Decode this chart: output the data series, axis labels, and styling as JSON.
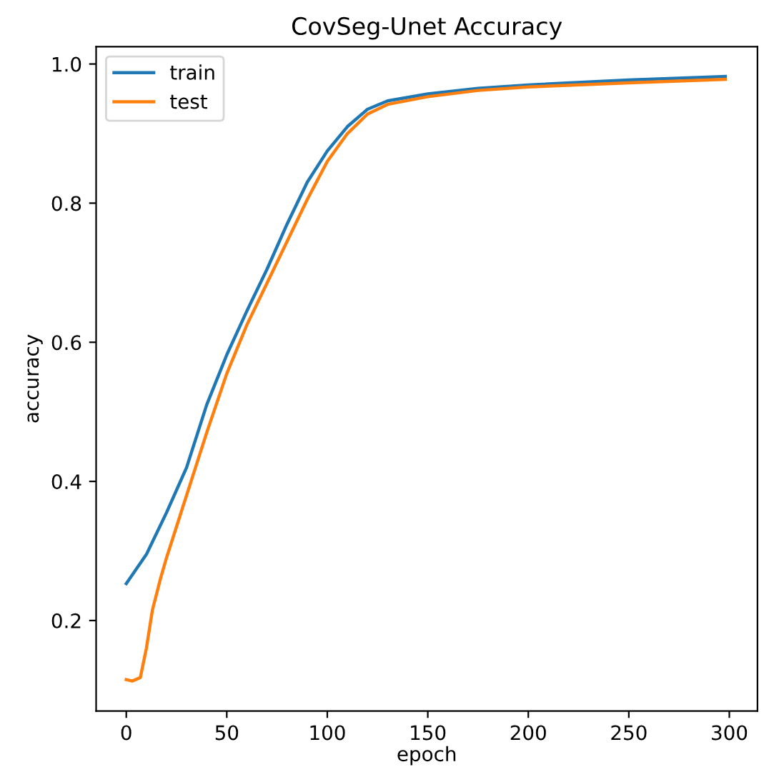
{
  "chart_data": {
    "type": "line",
    "title": "CovSeg-Unet Accuracy",
    "xlabel": "epoch",
    "ylabel": "accuracy",
    "xlim": [
      -15,
      314
    ],
    "ylim": [
      0.07,
      1.025
    ],
    "xticks": [
      0,
      50,
      100,
      150,
      200,
      250,
      300
    ],
    "yticks": [
      0.2,
      0.4,
      0.6,
      0.8,
      {
        "value": 1,
        "label": "1.0"
      }
    ],
    "legend": "top left",
    "grid": false,
    "series": [
      {
        "name": "train",
        "color": "#1f77b4",
        "x": [
          0,
          10,
          20,
          30,
          40,
          50,
          60,
          70,
          80,
          90,
          100,
          110,
          120,
          130,
          150,
          175,
          200,
          250,
          298
        ],
        "values": [
          0.253,
          0.295,
          0.355,
          0.42,
          0.51,
          0.582,
          0.645,
          0.705,
          0.77,
          0.83,
          0.875,
          0.91,
          0.935,
          0.947,
          0.957,
          0.965,
          0.97,
          0.977,
          0.982
        ]
      },
      {
        "name": "test",
        "color": "#ff7f0e",
        "x": [
          0,
          3,
          7,
          10,
          13,
          17,
          20,
          30,
          40,
          50,
          60,
          70,
          80,
          90,
          100,
          110,
          120,
          130,
          150,
          175,
          200,
          250,
          298
        ],
        "values": [
          0.115,
          0.113,
          0.118,
          0.16,
          0.215,
          0.26,
          0.29,
          0.38,
          0.47,
          0.555,
          0.625,
          0.685,
          0.745,
          0.805,
          0.86,
          0.9,
          0.928,
          0.942,
          0.953,
          0.962,
          0.967,
          0.973,
          0.978
        ]
      }
    ]
  }
}
